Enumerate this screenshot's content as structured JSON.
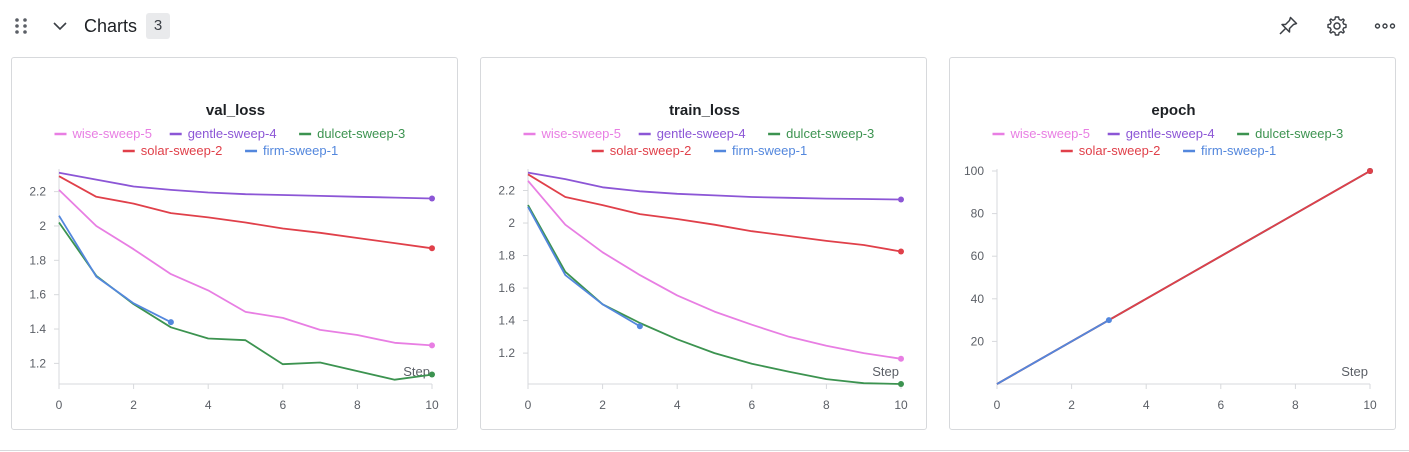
{
  "header": {
    "title": "Charts",
    "count": "3",
    "icons": [
      "drag-handle-icon",
      "chevron-down-icon",
      "pin-icon",
      "gear-icon",
      "more-horizontal-icon"
    ]
  },
  "colors": {
    "wise-sweep-5": "#e87ee3",
    "gentle-sweep-4": "#8c56d6",
    "dulcet-sweep-3": "#3c9350",
    "solar-sweep-2": "#e0404a",
    "firm-sweep-1": "#5387dd"
  },
  "chart_data": [
    {
      "type": "line",
      "title": "val_loss",
      "xlabel": "Step",
      "ylabel": "",
      "xlim": [
        0,
        10
      ],
      "ylim": [
        1.08,
        2.32
      ],
      "xticks": [
        0,
        2,
        4,
        6,
        8,
        10
      ],
      "yticks": [
        1.2,
        1.4,
        1.6,
        1.8,
        2,
        2.2
      ],
      "ytick_labels": [
        "1.2",
        "1.4",
        "1.6",
        "1.8",
        "2",
        "2.2"
      ],
      "grid": false,
      "legend_position": "top",
      "series": [
        {
          "name": "wise-sweep-5",
          "x": [
            0,
            1,
            2,
            3,
            4,
            5,
            6,
            7,
            8,
            9,
            10
          ],
          "y": [
            2.21,
            2.0,
            1.865,
            1.72,
            1.625,
            1.5,
            1.465,
            1.395,
            1.365,
            1.32,
            1.305
          ]
        },
        {
          "name": "gentle-sweep-4",
          "x": [
            0,
            1,
            2,
            3,
            4,
            5,
            6,
            7,
            8,
            9,
            10
          ],
          "y": [
            2.31,
            2.27,
            2.23,
            2.21,
            2.195,
            2.185,
            2.18,
            2.175,
            2.17,
            2.165,
            2.16
          ]
        },
        {
          "name": "dulcet-sweep-3",
          "x": [
            0,
            1,
            2,
            3,
            4,
            5,
            6,
            7,
            8,
            9,
            10
          ],
          "y": [
            2.02,
            1.71,
            1.545,
            1.41,
            1.345,
            1.335,
            1.195,
            1.205,
            1.155,
            1.105,
            1.135
          ]
        },
        {
          "name": "solar-sweep-2",
          "x": [
            0,
            1,
            2,
            3,
            4,
            5,
            6,
            7,
            8,
            9,
            10
          ],
          "y": [
            2.29,
            2.17,
            2.13,
            2.075,
            2.05,
            2.02,
            1.985,
            1.96,
            1.93,
            1.9,
            1.87
          ]
        },
        {
          "name": "firm-sweep-1",
          "x": [
            0,
            1,
            2,
            3
          ],
          "y": [
            2.06,
            1.705,
            1.55,
            1.44
          ]
        }
      ]
    },
    {
      "type": "line",
      "title": "train_loss",
      "xlabel": "Step",
      "ylabel": "",
      "xlim": [
        0,
        10
      ],
      "ylim": [
        1.01,
        2.32
      ],
      "xticks": [
        0,
        2,
        4,
        6,
        8,
        10
      ],
      "yticks": [
        1.2,
        1.4,
        1.6,
        1.8,
        2,
        2.2
      ],
      "ytick_labels": [
        "1.2",
        "1.4",
        "1.6",
        "1.8",
        "2",
        "2.2"
      ],
      "grid": false,
      "legend_position": "top",
      "series": [
        {
          "name": "wise-sweep-5",
          "x": [
            0,
            1,
            2,
            3,
            4,
            5,
            6,
            7,
            8,
            9,
            10
          ],
          "y": [
            2.26,
            1.99,
            1.82,
            1.68,
            1.555,
            1.455,
            1.375,
            1.3,
            1.245,
            1.2,
            1.165
          ]
        },
        {
          "name": "gentle-sweep-4",
          "x": [
            0,
            1,
            2,
            3,
            4,
            5,
            6,
            7,
            8,
            9,
            10
          ],
          "y": [
            2.31,
            2.27,
            2.22,
            2.195,
            2.18,
            2.17,
            2.16,
            2.155,
            2.15,
            2.148,
            2.145
          ]
        },
        {
          "name": "dulcet-sweep-3",
          "x": [
            0,
            1,
            2,
            3,
            4,
            5,
            6,
            7,
            8,
            9,
            10
          ],
          "y": [
            2.11,
            1.7,
            1.5,
            1.385,
            1.285,
            1.2,
            1.135,
            1.085,
            1.04,
            1.015,
            1.01
          ]
        },
        {
          "name": "solar-sweep-2",
          "x": [
            0,
            1,
            2,
            3,
            4,
            5,
            6,
            7,
            8,
            9,
            10
          ],
          "y": [
            2.3,
            2.16,
            2.11,
            2.055,
            2.025,
            1.99,
            1.95,
            1.92,
            1.89,
            1.865,
            1.825
          ]
        },
        {
          "name": "firm-sweep-1",
          "x": [
            0,
            1,
            2,
            3
          ],
          "y": [
            2.1,
            1.68,
            1.5,
            1.365
          ]
        }
      ]
    },
    {
      "type": "line",
      "title": "epoch",
      "xlabel": "Step",
      "ylabel": "",
      "xlim": [
        0,
        10
      ],
      "ylim": [
        0,
        100
      ],
      "xticks": [
        0,
        2,
        4,
        6,
        8,
        10
      ],
      "yticks": [
        20,
        40,
        60,
        80,
        100
      ],
      "ytick_labels": [
        "20",
        "40",
        "60",
        "80",
        "100"
      ],
      "grid": false,
      "legend_position": "top",
      "series": [
        {
          "name": "wise-sweep-5",
          "x": [
            0,
            10
          ],
          "y": [
            0,
            100
          ]
        },
        {
          "name": "gentle-sweep-4",
          "x": [
            0,
            10
          ],
          "y": [
            0,
            100
          ]
        },
        {
          "name": "dulcet-sweep-3",
          "x": [
            0,
            10
          ],
          "y": [
            0,
            100
          ]
        },
        {
          "name": "solar-sweep-2",
          "x": [
            0,
            1,
            2,
            3,
            4,
            5,
            6,
            7,
            8,
            9,
            10
          ],
          "y": [
            0,
            10,
            20,
            30,
            40,
            50,
            60,
            70,
            80,
            90,
            100
          ]
        },
        {
          "name": "firm-sweep-1",
          "x": [
            0,
            1,
            2,
            3
          ],
          "y": [
            0,
            10,
            20,
            30
          ]
        }
      ]
    }
  ]
}
